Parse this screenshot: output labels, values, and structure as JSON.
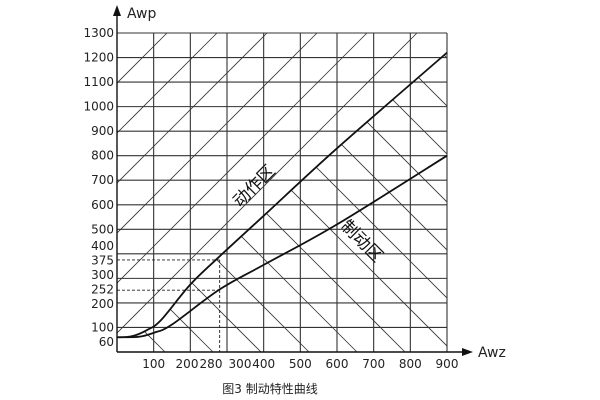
{
  "chart_data": {
    "type": "line",
    "title": "",
    "caption": "图3  制动特性曲线",
    "xlabel": "Awz",
    "ylabel": "Awp",
    "xlim": [
      0,
      900
    ],
    "ylim": [
      0,
      1300
    ],
    "grid": true,
    "x_ticks": [
      100,
      200,
      280,
      300,
      400,
      500,
      600,
      700,
      800,
      900
    ],
    "y_ticks": [
      60,
      100,
      200,
      252,
      300,
      375,
      400,
      500,
      600,
      700,
      800,
      900,
      1000,
      1100,
      1200,
      1300
    ],
    "reference_lines": [
      {
        "style": "dashed",
        "x": 280,
        "y": 375
      },
      {
        "style": "dashed",
        "x": 280,
        "y": 252
      }
    ],
    "series": [
      {
        "points": [
          [
            0,
            60
          ],
          [
            40,
            64
          ],
          [
            80,
            88
          ],
          [
            120,
            130
          ],
          [
            200,
            275
          ],
          [
            280,
            390
          ],
          [
            400,
            555
          ],
          [
            600,
            830
          ],
          [
            900,
            1220
          ]
        ]
      },
      {
        "points": [
          [
            0,
            60
          ],
          [
            60,
            62
          ],
          [
            100,
            78
          ],
          [
            150,
            112
          ],
          [
            280,
            255
          ],
          [
            400,
            355
          ],
          [
            600,
            520
          ],
          [
            900,
            800
          ]
        ]
      }
    ],
    "annotations": [
      {
        "text": "动作区",
        "region": "above upper curve"
      },
      {
        "text": "制动区",
        "region": "below lower curve"
      }
    ]
  },
  "colors": {
    "line": "#111111",
    "grid": "#333333"
  }
}
